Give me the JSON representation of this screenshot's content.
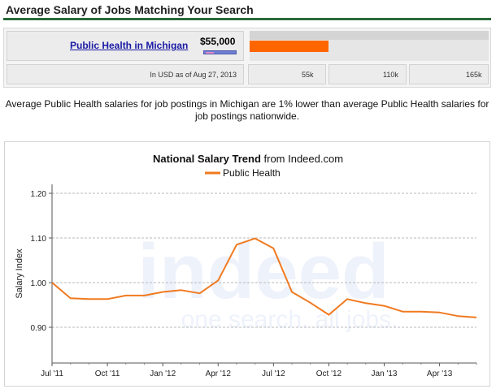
{
  "header": {
    "title": "Average Salary of Jobs Matching Your Search",
    "accent_color": "#2a6a3a"
  },
  "salary_panel": {
    "job_label": "Public Health in Michigan",
    "salary": "$55,000",
    "bar_color": "#ff6600",
    "as_of": "In USD as of Aug 27, 2013",
    "scale_ticks": [
      "55k",
      "110k",
      "165k"
    ]
  },
  "description": "Average Public Health salaries for job postings in Michigan are 1% lower than average Public Health salaries for job postings nationwide.",
  "chart_data": {
    "type": "line",
    "title_bold": "National Salary Trend",
    "title_rest": " from Indeed.com",
    "ylabel": "Salary Index",
    "ylim": [
      0.82,
      1.22
    ],
    "yticks": [
      "1.20",
      "1.10",
      "1.00",
      "0.90"
    ],
    "xticks": [
      "Jul '11",
      "Oct '11",
      "Jan '12",
      "Apr '12",
      "Jul '12",
      "Oct '12",
      "Jan '13",
      "Apr '13"
    ],
    "legend_placement": "top-center",
    "grid": "horizontal dashed",
    "watermark": "indeed one search. all jobs.",
    "series": [
      {
        "name": "Public Health",
        "color": "#f07a20",
        "x": [
          "2011-07",
          "2011-08",
          "2011-09",
          "2011-10",
          "2011-11",
          "2011-12",
          "2012-01",
          "2012-02",
          "2012-03",
          "2012-04",
          "2012-05",
          "2012-06",
          "2012-07",
          "2012-08",
          "2012-09",
          "2012-10",
          "2012-11",
          "2012-12",
          "2013-01",
          "2013-02",
          "2013-03",
          "2013-04",
          "2013-05",
          "2013-06"
        ],
        "values": [
          1.0,
          0.965,
          0.963,
          0.963,
          0.971,
          0.971,
          0.979,
          0.983,
          0.976,
          1.005,
          1.085,
          1.099,
          1.077,
          0.979,
          0.955,
          0.928,
          0.963,
          0.954,
          0.948,
          0.935,
          0.935,
          0.933,
          0.925,
          0.922
        ]
      }
    ]
  }
}
